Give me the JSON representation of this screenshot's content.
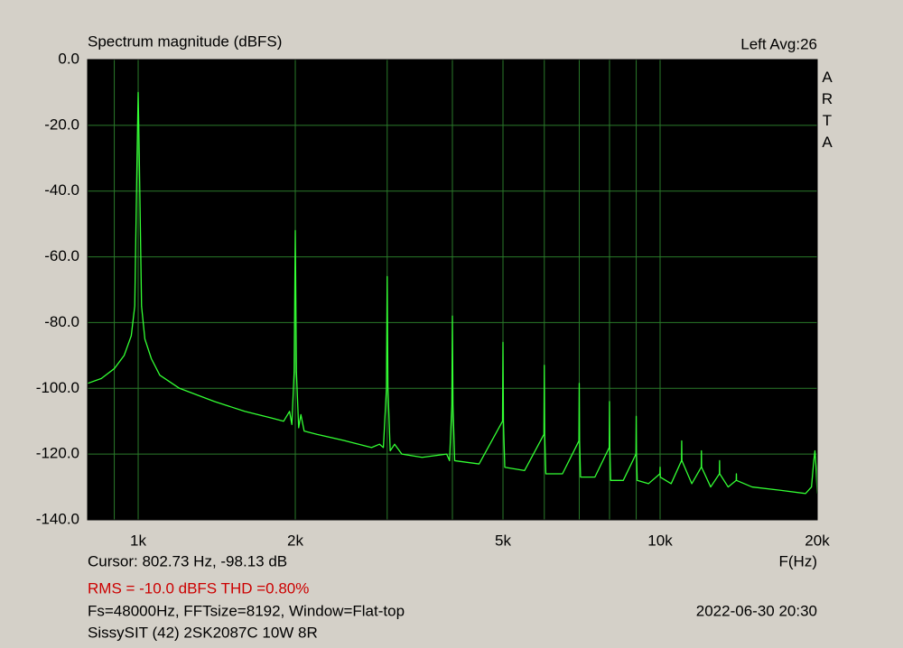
{
  "chart_data": {
    "type": "line",
    "title": "Spectrum magnitude (dBFS)",
    "channel": "Left  Avg:26",
    "brand": "ARTA",
    "x_label": "F(Hz)",
    "cursor": "Cursor: 802.73 Hz, -98.13 dB",
    "measurement": "RMS =  -10.0 dBFS  THD =0.80%",
    "measurement_color": "#cc0000",
    "settings": "Fs=48000Hz, FFTsize=8192, Window=Flat-top",
    "timestamp": "2022-06-30  20:30",
    "device": "SissySIT (42) 2SK2087C 10W 8R",
    "log_x": true,
    "grid": true,
    "color": "#33ff33",
    "grid_color": "#2a7a2a",
    "plot_background": "#000000",
    "xlim": [
      800,
      20000
    ],
    "xticks": [
      {
        "value": 1000,
        "label": "1k"
      },
      {
        "value": 2000,
        "label": "2k"
      },
      {
        "value": 5000,
        "label": "5k"
      },
      {
        "value": 10000,
        "label": "10k"
      },
      {
        "value": 20000,
        "label": "20k"
      }
    ],
    "xgrid_minor": [
      900,
      3000,
      4000,
      6000,
      7000,
      8000,
      9000
    ],
    "ylim": [
      -140,
      0
    ],
    "yticks": [
      {
        "value": 0,
        "label": "0.0"
      },
      {
        "value": -20,
        "label": "-20.0"
      },
      {
        "value": -40,
        "label": "-40.0"
      },
      {
        "value": -60,
        "label": "-60.0"
      },
      {
        "value": -80,
        "label": "-80.0"
      },
      {
        "value": -100,
        "label": "-100.0"
      },
      {
        "value": -120,
        "label": "-120.0"
      },
      {
        "value": -140,
        "label": "-140.0"
      }
    ],
    "x": [
      800,
      850,
      900,
      940,
      970,
      985,
      995,
      1000,
      1005,
      1015,
      1030,
      1060,
      1100,
      1200,
      1400,
      1600,
      1800,
      1900,
      1950,
      1970,
      1990,
      2000,
      2010,
      2030,
      2050,
      2080,
      2200,
      2500,
      2800,
      2900,
      2950,
      2990,
      3000,
      3010,
      3040,
      3100,
      3200,
      3500,
      3900,
      3950,
      3990,
      4000,
      4010,
      4040,
      4500,
      4990,
      5000,
      5010,
      5040,
      5500,
      5990,
      6000,
      6010,
      6040,
      6500,
      6990,
      7000,
      7010,
      7040,
      7500,
      7990,
      8000,
      8010,
      8040,
      8500,
      8990,
      9000,
      9010,
      9040,
      9500,
      9990,
      10000,
      10010,
      10500,
      10990,
      11000,
      11010,
      11500,
      11990,
      12000,
      12010,
      12500,
      12990,
      13000,
      13010,
      13500,
      13990,
      14000,
      14010,
      15000,
      17000,
      19000,
      19500,
      19700,
      19800,
      19900,
      20000
    ],
    "values": [
      -98.5,
      -97,
      -94,
      -90,
      -84,
      -75,
      -30,
      -10,
      -30,
      -75,
      -85,
      -91,
      -96,
      -100,
      -104,
      -107,
      -109,
      -110,
      -107,
      -111,
      -95,
      -52,
      -95,
      -112,
      -108,
      -113,
      -114,
      -116,
      -118,
      -117,
      -118,
      -100,
      -66,
      -100,
      -119,
      -117,
      -120,
      -121,
      -120,
      -122,
      -105,
      -78,
      -105,
      -122,
      -123,
      -110,
      -86,
      -110,
      -124,
      -125,
      -114,
      -93,
      -114,
      -126,
      -126,
      -116,
      -98.5,
      -116,
      -127,
      -127,
      -118,
      -104,
      -118,
      -128,
      -128,
      -120,
      -108.5,
      -120,
      -128,
      -129,
      -126,
      -124,
      -127,
      -129,
      -122,
      -116,
      -122,
      -129,
      -124,
      -119,
      -124,
      -130,
      -126,
      -122,
      -126,
      -130,
      -128,
      -126,
      -128,
      -130,
      -131,
      -132,
      -130,
      -122,
      -119,
      -124,
      -132
    ]
  }
}
